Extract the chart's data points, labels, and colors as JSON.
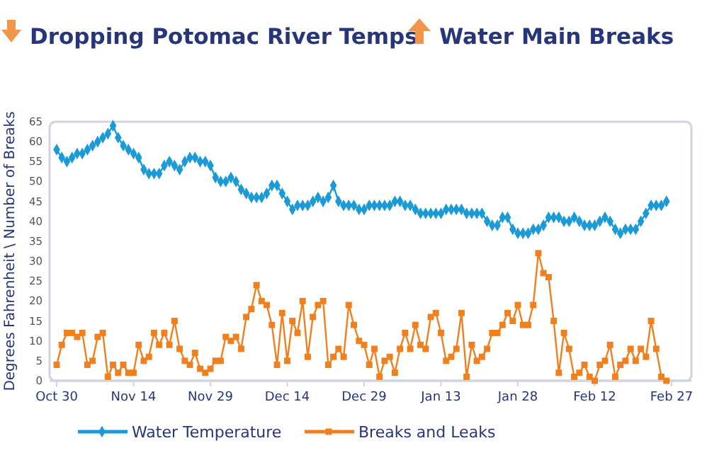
{
  "chart_data": {
    "type": "line",
    "title": "Dropping Potomac River Temps",
    "subtitle": "Water Main Breaks",
    "ylabel": "Degrees Fahrenheit \\ Number of Breaks",
    "categories": [
      "Oct 30",
      null,
      null,
      null,
      null,
      null,
      null,
      null,
      null,
      null,
      null,
      null,
      null,
      null,
      null,
      "Nov 14",
      null,
      null,
      null,
      null,
      null,
      null,
      null,
      null,
      null,
      null,
      null,
      null,
      null,
      null,
      "Nov 29",
      null,
      null,
      null,
      null,
      null,
      null,
      null,
      null,
      null,
      null,
      null,
      null,
      null,
      null,
      "Dec 14",
      null,
      null,
      null,
      null,
      null,
      null,
      null,
      null,
      null,
      null,
      null,
      null,
      null,
      null,
      "Dec 29",
      null,
      null,
      null,
      null,
      null,
      null,
      null,
      null,
      null,
      null,
      null,
      null,
      null,
      null,
      "Jan 13",
      null,
      null,
      null,
      null,
      null,
      null,
      null,
      null,
      null,
      null,
      null,
      null,
      null,
      null,
      "Jan 28",
      null,
      null,
      null,
      null,
      null,
      null,
      null,
      null,
      null,
      null,
      null,
      null,
      null,
      null,
      "Feb 12",
      null,
      null,
      null,
      null,
      null,
      null,
      null,
      null,
      null,
      null,
      null,
      null,
      null,
      null,
      "Feb 27"
    ],
    "series": [
      {
        "name": "Water Temperature",
        "color": "#1a9ad6",
        "marker": "diamond",
        "values": [
          58,
          56,
          55,
          56,
          57,
          57,
          58,
          59,
          60,
          61,
          62,
          64,
          61,
          59,
          58,
          57,
          56,
          53,
          52,
          52,
          52,
          54,
          55,
          54,
          53,
          55,
          56,
          56,
          55,
          55,
          54,
          51,
          50,
          50,
          51,
          50,
          48,
          47,
          46,
          46,
          46,
          47,
          49,
          49,
          47,
          45,
          43,
          44,
          44,
          44,
          45,
          46,
          45,
          46,
          49,
          45,
          44,
          44,
          44,
          43,
          43,
          44,
          44,
          44,
          44,
          44,
          45,
          45,
          44,
          44,
          43,
          42,
          42,
          42,
          42,
          42,
          43,
          43,
          43,
          43,
          42,
          42,
          42,
          42,
          40,
          39,
          39,
          41,
          41,
          38,
          37,
          37,
          37,
          38,
          38,
          39,
          41,
          41,
          41,
          40,
          40,
          41,
          40,
          39,
          39,
          39,
          40,
          41,
          40,
          38,
          37,
          38,
          38,
          38,
          40,
          42,
          44,
          44,
          44,
          45,
          null
        ]
      },
      {
        "name": "Breaks and Leaks",
        "color": "#f07f1e",
        "marker": "square",
        "values": [
          4,
          9,
          12,
          12,
          11,
          12,
          4,
          5,
          11,
          12,
          1,
          4,
          2,
          4,
          2,
          2,
          9,
          5,
          6,
          12,
          9,
          12,
          9,
          15,
          8,
          5,
          4,
          7,
          3,
          2,
          3,
          5,
          5,
          11,
          10,
          11,
          8,
          16,
          18,
          24,
          20,
          19,
          14,
          4,
          17,
          5,
          15,
          12,
          20,
          6,
          16,
          19,
          20,
          4,
          6,
          8,
          6,
          19,
          14,
          10,
          9,
          4,
          8,
          1,
          5,
          6,
          2,
          8,
          12,
          8,
          14,
          9,
          8,
          16,
          17,
          12,
          5,
          6,
          8,
          17,
          1,
          9,
          5,
          6,
          8,
          12,
          12,
          14,
          17,
          15,
          19,
          14,
          14,
          19,
          32,
          27,
          26,
          15,
          2,
          12,
          8,
          1,
          2,
          4,
          1,
          0,
          4,
          5,
          9,
          1,
          4,
          5,
          8,
          5,
          8,
          6,
          15,
          8,
          1,
          0,
          null
        ]
      }
    ],
    "ylim": [
      0,
      65
    ],
    "yticks": [
      0,
      5,
      10,
      15,
      20,
      25,
      30,
      35,
      40,
      45,
      50,
      55,
      60,
      65
    ],
    "grid": false,
    "legend": "bottom",
    "line_style": "solid"
  }
}
